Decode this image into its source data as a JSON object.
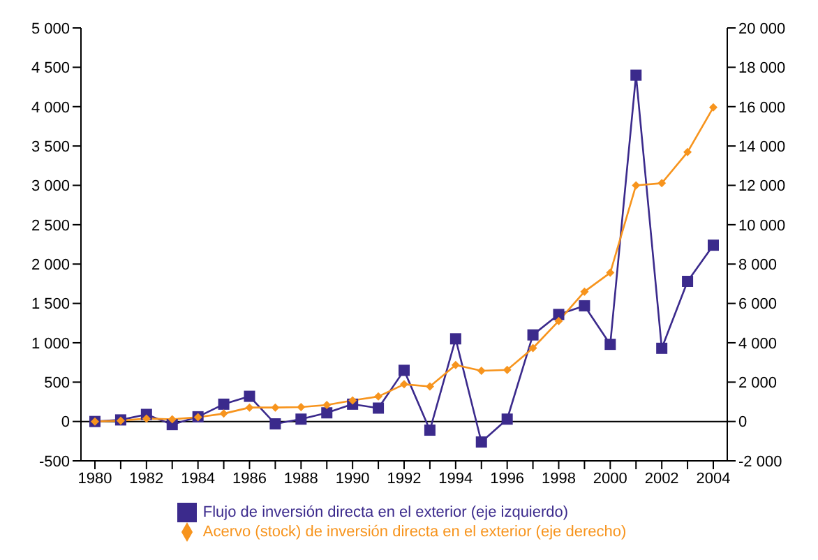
{
  "chart_data": {
    "type": "line",
    "categories": [
      "1980",
      null,
      "1982",
      null,
      "1984",
      null,
      "1986",
      null,
      "1988",
      null,
      "1990",
      null,
      "1992",
      null,
      "1994",
      null,
      "1996",
      null,
      "1998",
      null,
      "2000",
      null,
      "2002",
      null,
      "2004"
    ],
    "series": [
      {
        "name": "Flujo de inversión directa en el exterior (eje izquierdo)",
        "color": "#3b2a8c",
        "marker": "square",
        "values": [
          0,
          20,
          90,
          -40,
          60,
          220,
          320,
          -30,
          30,
          110,
          220,
          170,
          650,
          -110,
          1050,
          -260,
          30,
          1100,
          1360,
          1470,
          980,
          4400,
          930,
          1780,
          2240
        ]
      },
      {
        "name": "Acervo (stock) de inversión directa en el exterior (eje derecho)",
        "color": "#f7941d",
        "marker": "diamond",
        "axis": "y2",
        "values": [
          0,
          40,
          150,
          110,
          220,
          400,
          710,
          710,
          730,
          840,
          1070,
          1270,
          1890,
          1780,
          2870,
          2580,
          2620,
          3730,
          5110,
          6600,
          7560,
          12000,
          12110,
          13690,
          15960
        ]
      }
    ],
    "ylim": [
      -500,
      5000
    ],
    "yticks": [
      {
        "value": -500,
        "label": "-500"
      },
      {
        "value": 0,
        "label": "0"
      },
      {
        "value": 500,
        "label": "500"
      },
      {
        "value": 1000,
        "label": "1 000"
      },
      {
        "value": 1500,
        "label": "1 500"
      },
      {
        "value": 2000,
        "label": "2 000"
      },
      {
        "value": 2500,
        "label": "2 500"
      },
      {
        "value": 3000,
        "label": "3 000"
      },
      {
        "value": 3500,
        "label": "3 500"
      },
      {
        "value": 4000,
        "label": "4 000"
      },
      {
        "value": 4500,
        "label": "4 500"
      },
      {
        "value": 5000,
        "label": "5 000"
      }
    ],
    "y2lim": [
      -2000,
      20000
    ],
    "y2ticks": [
      {
        "value": -2000,
        "label": "-2 000"
      },
      {
        "value": 0,
        "label": "0"
      },
      {
        "value": 2000,
        "label": "2 000"
      },
      {
        "value": 4000,
        "label": "4 000"
      },
      {
        "value": 6000,
        "label": "6 000"
      },
      {
        "value": 8000,
        "label": "8 000"
      },
      {
        "value": 10000,
        "label": "10 000"
      },
      {
        "value": 12000,
        "label": "12 000"
      },
      {
        "value": 14000,
        "label": "14 000"
      },
      {
        "value": 16000,
        "label": "16 000"
      },
      {
        "value": 18000,
        "label": "18 000"
      },
      {
        "value": 20000,
        "label": "20 000"
      }
    ],
    "ref_lines": [
      {
        "axis": "y",
        "value": 0
      }
    ],
    "legend": "bottom",
    "grid": false
  }
}
